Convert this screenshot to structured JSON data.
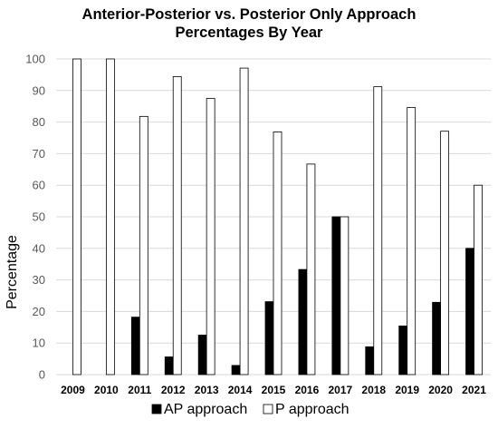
{
  "chart_data": {
    "type": "bar",
    "title_lines": [
      "Anterior-Posterior  vs. Posterior Only Approach",
      "Percentages By Year"
    ],
    "xlabel": "",
    "ylabel": "Percentage",
    "ylim": [
      0,
      100
    ],
    "yticks": [
      0,
      10,
      20,
      30,
      40,
      50,
      60,
      70,
      80,
      90,
      100
    ],
    "grid": true,
    "legend_position": "bottom",
    "categories": [
      "2009",
      "2010",
      "2011",
      "2012",
      "2013",
      "2014",
      "2015",
      "2016",
      "2017",
      "2018",
      "2019",
      "2020",
      "2021"
    ],
    "series": [
      {
        "name": "AP approach",
        "color": "#000000",
        "values": [
          0,
          0,
          18.2,
          5.6,
          12.5,
          2.9,
          23.1,
          33.3,
          50,
          8.8,
          15.4,
          22.9,
          40
        ]
      },
      {
        "name": "P approach",
        "color": "#ffffff",
        "values": [
          100,
          100,
          81.8,
          94.4,
          87.5,
          97.1,
          76.9,
          66.7,
          50,
          91.2,
          84.6,
          77.1,
          60
        ]
      }
    ]
  }
}
